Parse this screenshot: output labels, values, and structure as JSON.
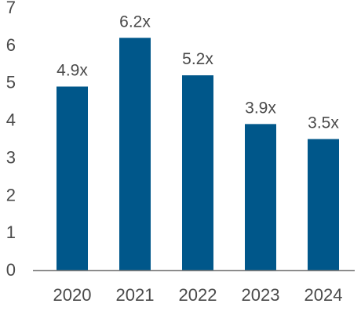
{
  "chart_data": {
    "type": "bar",
    "categories": [
      "2020",
      "2021",
      "2022",
      "2023",
      "2024"
    ],
    "values": [
      4.9,
      6.2,
      5.2,
      3.9,
      3.5
    ],
    "data_labels": [
      "4.9x",
      "6.2x",
      "5.2x",
      "3.9x",
      "3.5x"
    ],
    "y_ticks": [
      "0",
      "1",
      "2",
      "3",
      "4",
      "5",
      "6",
      "7"
    ],
    "ylim": [
      0,
      7
    ],
    "grid": false,
    "legend": "none",
    "bar_color": "#00578a"
  }
}
